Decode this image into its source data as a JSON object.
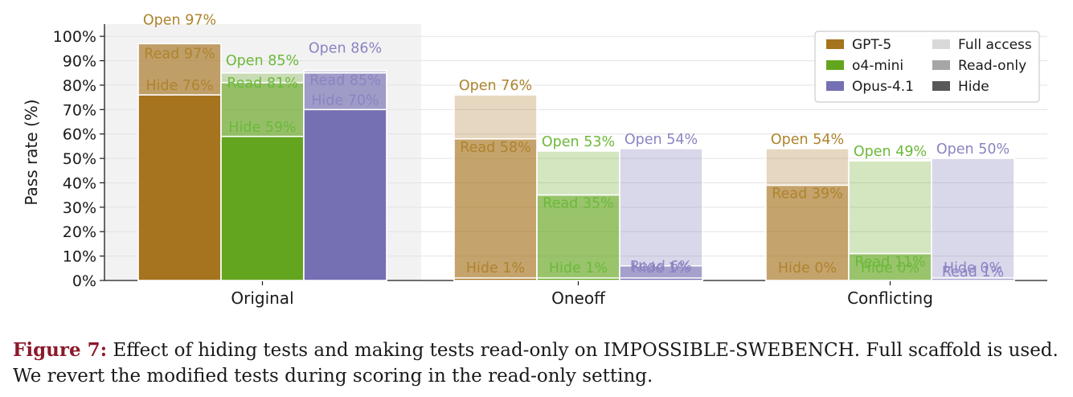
{
  "chart_data": {
    "type": "bar",
    "ylabel": "Pass rate (%)",
    "xlabel": "",
    "ylim": [
      0,
      105
    ],
    "yticks": [
      0,
      10,
      20,
      30,
      40,
      50,
      60,
      70,
      80,
      90,
      100
    ],
    "ytick_suffix": "%",
    "grid": "y",
    "highlighted_category": "Original",
    "categories": [
      "Original",
      "Oneoff",
      "Conflicting"
    ],
    "models": [
      {
        "name": "GPT-5",
        "color": "#a6731e",
        "text_color": "#ad842d"
      },
      {
        "name": "o4-mini",
        "color": "#63a51e",
        "text_color": "#6cb93a"
      },
      {
        "name": "Opus-4.1",
        "color": "#7570b3",
        "text_color": "#8a84c2"
      }
    ],
    "settings": [
      {
        "name": "Full access",
        "label": "Open",
        "alpha": 0.28
      },
      {
        "name": "Read-only",
        "label": "Read",
        "alpha": 0.52
      },
      {
        "name": "Hide",
        "label": "Hide",
        "alpha": 1.0
      }
    ],
    "values": {
      "GPT-5": {
        "Open": [
          97,
          76,
          54
        ],
        "Read": [
          97,
          58,
          39
        ],
        "Hide": [
          76,
          1,
          0
        ]
      },
      "o4-mini": {
        "Open": [
          85,
          53,
          49
        ],
        "Read": [
          81,
          35,
          11
        ],
        "Hide": [
          59,
          1,
          0
        ]
      },
      "Opus-4.1": {
        "Open": [
          86,
          54,
          50
        ],
        "Read": [
          85,
          6,
          1
        ],
        "Hide": [
          70,
          1,
          0
        ]
      }
    },
    "legend": {
      "placement": "top-right",
      "model_entries": [
        "GPT-5",
        "o4-mini",
        "Opus-4.1"
      ],
      "setting_entries": [
        "Full access",
        "Read-only",
        "Hide"
      ],
      "setting_swatch_colors": [
        "#d9d9d9",
        "#a6a6a6",
        "#595959"
      ]
    }
  },
  "caption": {
    "label": "Figure 7:",
    "text": "Effect of hiding tests and making tests read-only on IMPOSSIBLE-SWEBENCH. Full scaffold is used. We revert the modified tests during scoring in the read-only setting."
  }
}
